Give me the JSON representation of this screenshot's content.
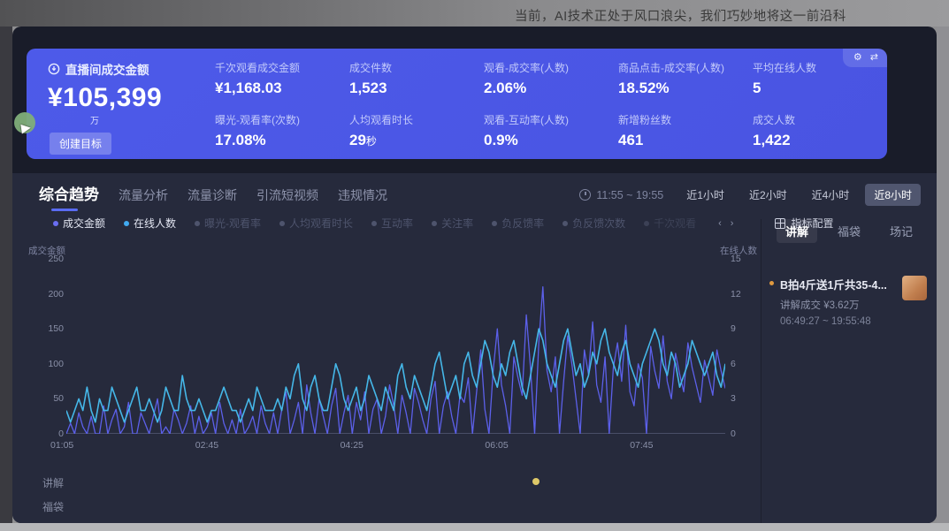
{
  "window": {
    "top_caption": "当前，AI技术正处于风口浪尖，我们巧妙地将这一前沿科"
  },
  "colors": {
    "accent_blue": "#4d5ae9",
    "series_gmv": "#5c60ea",
    "series_online": "#45b7e8",
    "panel_dark": "#191c29",
    "panel_light": "#262a3c",
    "highlight_yellow": "#ddc868",
    "bullet_orange": "#e0993f"
  },
  "kpi_panel": {
    "main": {
      "title": "直播间成交金额",
      "value": "¥105,399",
      "unit": "万",
      "button_label": "创建目标"
    },
    "corner_icons": [
      {
        "name": "gear-icon",
        "glyph": "⚙"
      },
      {
        "name": "swap-icon",
        "glyph": "⇄"
      }
    ],
    "columns": [
      [
        {
          "label": "千次观看成交金额",
          "value": "¥1,168.03"
        },
        {
          "label": "曝光-观看率(次数)",
          "value": "17.08%"
        }
      ],
      [
        {
          "label": "成交件数",
          "value": "1,523"
        },
        {
          "label": "人均观看时长",
          "value": "29",
          "unit": "秒"
        }
      ],
      [
        {
          "label": "观看-成交率(人数)",
          "value": "2.06%"
        },
        {
          "label": "观看-互动率(人数)",
          "value": "0.9%"
        }
      ],
      [
        {
          "label": "商品点击-成交率(人数)",
          "value": "18.52%"
        },
        {
          "label": "新增粉丝数",
          "value": "461"
        }
      ],
      [
        {
          "label": "平均在线人数",
          "value": "5"
        },
        {
          "label": "成交人数",
          "value": "1,422"
        }
      ]
    ]
  },
  "tabs": [
    {
      "label": "综合趋势",
      "active": true
    },
    {
      "label": "流量分析",
      "active": false
    },
    {
      "label": "流量诊断",
      "active": false
    },
    {
      "label": "引流短视频",
      "active": false
    },
    {
      "label": "违规情况",
      "active": false
    }
  ],
  "time_filter": {
    "range": "11:55 ~ 19:55",
    "buttons": [
      {
        "label": "近1小时",
        "active": false
      },
      {
        "label": "近2小时",
        "active": false
      },
      {
        "label": "近4小时",
        "active": false
      },
      {
        "label": "近8小时",
        "active": true
      }
    ]
  },
  "legend": {
    "items": [
      {
        "label": "成交金额",
        "color": "#6a6ef2",
        "active": true
      },
      {
        "label": "在线人数",
        "color": "#41aaf0",
        "active": true
      },
      {
        "label": "曝光-观看率",
        "active": false
      },
      {
        "label": "人均观看时长",
        "active": false
      },
      {
        "label": "互动率",
        "active": false
      },
      {
        "label": "关注率",
        "active": false
      },
      {
        "label": "负反馈率",
        "active": false
      },
      {
        "label": "负反馈次数",
        "active": false
      },
      {
        "label": "千次观看",
        "active": false,
        "faded": true
      }
    ],
    "pager": {
      "prev": "‹",
      "next": "›"
    },
    "config_label": "指标配置"
  },
  "chart_data": {
    "type": "line",
    "x_axis": {
      "ticks": [
        "01:05",
        "02:45",
        "04:25",
        "06:05",
        "07:45"
      ]
    },
    "y_axis_left": {
      "label": "成交金额",
      "ticks": [
        250,
        200,
        150,
        100,
        50,
        0
      ],
      "max": 250
    },
    "y_axis_right": {
      "label": "在线人数",
      "ticks": [
        15,
        12,
        9,
        6,
        3,
        0
      ],
      "max": 15
    },
    "grid": false,
    "series": [
      {
        "name": "成交金额",
        "axis": "left",
        "color": "#5c60ea",
        "values": [
          0,
          15,
          0,
          30,
          10,
          0,
          25,
          0,
          0,
          40,
          0,
          20,
          35,
          0,
          10,
          45,
          0,
          0,
          30,
          15,
          0,
          25,
          50,
          0,
          10,
          0,
          35,
          20,
          0,
          15,
          40,
          0,
          25,
          0,
          10,
          30,
          0,
          45,
          15,
          0,
          20,
          0,
          35,
          0,
          10,
          25,
          0,
          40,
          15,
          0,
          30,
          0,
          35,
          60,
          0,
          20,
          45,
          0,
          70,
          30,
          0,
          50,
          25,
          0,
          40,
          65,
          0,
          30,
          55,
          0,
          45,
          20,
          60,
          0,
          35,
          50,
          0,
          25,
          70,
          40,
          0,
          55,
          30,
          0,
          65,
          45,
          20,
          0,
          50,
          75,
          0,
          40,
          60,
          25,
          0,
          55,
          45,
          80,
          0,
          60,
          120,
          35,
          0,
          90,
          150,
          70,
          40,
          0,
          110,
          80,
          55,
          170,
          95,
          0,
          130,
          210,
          90,
          60,
          110,
          0,
          75,
          140,
          100,
          50,
          0,
          120,
          85,
          160,
          70,
          45,
          110,
          0,
          95,
          130,
          75,
          155,
          60,
          40,
          100,
          80,
          0,
          125,
          90,
          65,
          140,
          75,
          50,
          115,
          85,
          60,
          130,
          95,
          70,
          45,
          105,
          80,
          55,
          120,
          90,
          65
        ]
      },
      {
        "name": "在线人数",
        "axis": "right",
        "color": "#45b7e8",
        "values": [
          2,
          1,
          2,
          3,
          2,
          4,
          2,
          1,
          3,
          2,
          2,
          4,
          3,
          2,
          1,
          2,
          3,
          4,
          2,
          2,
          3,
          2,
          1,
          2,
          4,
          3,
          2,
          2,
          5,
          3,
          2,
          2,
          3,
          2,
          1,
          2,
          2,
          3,
          4,
          3,
          2,
          2,
          1,
          2,
          3,
          2,
          4,
          3,
          2,
          2,
          2,
          3,
          2,
          4,
          3,
          5,
          6,
          3,
          2,
          4,
          5,
          3,
          2,
          2,
          4,
          6,
          5,
          3,
          2,
          3,
          4,
          2,
          3,
          5,
          4,
          3,
          2,
          4,
          3,
          2,
          5,
          6,
          4,
          3,
          5,
          4,
          3,
          2,
          4,
          6,
          7,
          5,
          3,
          4,
          5,
          3,
          6,
          7,
          5,
          4,
          6,
          8,
          7,
          5,
          4,
          6,
          5,
          7,
          8,
          6,
          4,
          3,
          5,
          7,
          9,
          8,
          6,
          5,
          4,
          6,
          8,
          9,
          7,
          5,
          6,
          4,
          5,
          7,
          6,
          8,
          9,
          7,
          6,
          5,
          7,
          8,
          6,
          5,
          4,
          6,
          7,
          8,
          9,
          8,
          6,
          5,
          7,
          6,
          4,
          5,
          6,
          8,
          7,
          6,
          5,
          6,
          7,
          5,
          4,
          6
        ]
      }
    ]
  },
  "sidebar": {
    "tabs": [
      {
        "label": "讲解",
        "active": true
      },
      {
        "label": "福袋",
        "active": false
      },
      {
        "label": "场记",
        "active": false
      }
    ],
    "items": [
      {
        "title": "B拍4斤送1斤共35-4...",
        "deal": "讲解成交 ¥3.62万",
        "time": "06:49:27 ~ 19:55:48"
      }
    ]
  },
  "timeline_rows": [
    {
      "label": "讲解"
    },
    {
      "label": "福袋"
    }
  ]
}
